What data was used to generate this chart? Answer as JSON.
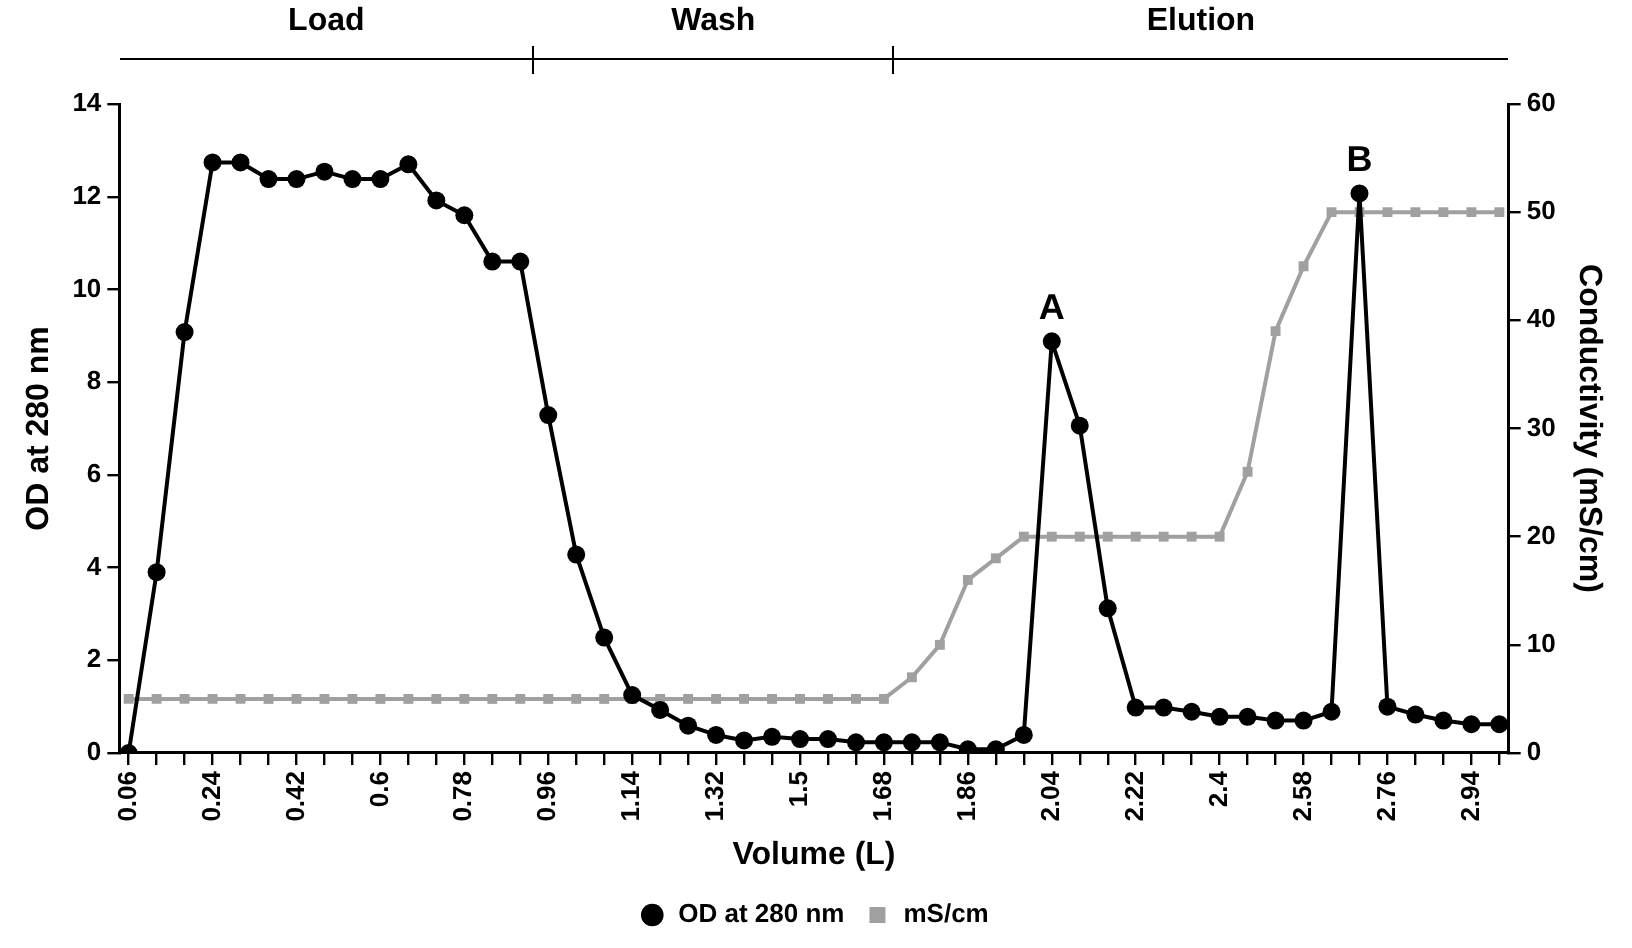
{
  "chart_data": {
    "type": "line",
    "xlabel": "Volume (L)",
    "ylabel": "OD at 280 nm",
    "y2label": "Conductivity (mS/cm)",
    "x": [
      0.06,
      0.12,
      0.18,
      0.24,
      0.3,
      0.36,
      0.42,
      0.48,
      0.54,
      0.6,
      0.66,
      0.72,
      0.78,
      0.84,
      0.9,
      0.96,
      1.02,
      1.08,
      1.14,
      1.2,
      1.26,
      1.32,
      1.38,
      1.44,
      1.5,
      1.56,
      1.62,
      1.68,
      1.74,
      1.8,
      1.86,
      1.92,
      1.98,
      2.04,
      2.1,
      2.16,
      2.22,
      2.28,
      2.34,
      2.4,
      2.46,
      2.52,
      2.58,
      2.64,
      2.7,
      2.76,
      2.82,
      2.88,
      2.94,
      3.0
    ],
    "series": [
      {
        "name": "OD at 280 nm",
        "color": "#000000",
        "marker": "circle",
        "values": [
          0,
          3.9,
          9.08,
          12.74,
          12.74,
          12.38,
          12.38,
          12.54,
          12.38,
          12.38,
          12.7,
          11.92,
          11.6,
          10.6,
          10.6,
          7.29,
          4.28,
          2.49,
          1.25,
          0.93,
          0.59,
          0.39,
          0.27,
          0.35,
          0.3,
          0.3,
          0.23,
          0.23,
          0.23,
          0.23,
          0.08,
          0.08,
          0.39,
          8.88,
          7.06,
          3.12,
          0.98,
          0.98,
          0.89,
          0.78,
          0.78,
          0.7,
          0.7,
          0.89,
          12.07,
          1,
          0.83,
          0.7,
          0.62,
          0.62
        ]
      },
      {
        "name": "mS/cm",
        "color": "#a0a0a0",
        "marker": "square",
        "axis": "y2",
        "values": [
          5,
          5,
          5,
          5,
          5,
          5,
          5,
          5,
          5,
          5,
          5,
          5,
          5,
          5,
          5,
          5,
          5,
          5,
          5,
          5,
          5,
          5,
          5,
          5,
          5,
          5,
          5,
          5,
          7,
          10,
          16,
          18,
          20,
          20,
          20,
          20,
          20,
          20,
          20,
          20,
          26,
          39,
          45,
          50,
          50,
          50,
          50,
          50,
          50,
          50
        ]
      }
    ],
    "xlim": [
      0.04,
      3.02
    ],
    "xticks": [
      0.06,
      {
        "value": 0.12,
        "label": null
      },
      {
        "value": 0.18,
        "label": null
      },
      0.24,
      {
        "value": 0.3,
        "label": null
      },
      {
        "value": 0.36,
        "label": null
      },
      0.42,
      {
        "value": 0.48,
        "label": null
      },
      {
        "value": 0.54,
        "label": null
      },
      0.6,
      {
        "value": 0.66,
        "label": null
      },
      {
        "value": 0.72,
        "label": null
      },
      0.78,
      {
        "value": 0.84,
        "label": null
      },
      {
        "value": 0.9,
        "label": null
      },
      0.96,
      {
        "value": 1.02,
        "label": null
      },
      {
        "value": 1.08,
        "label": null
      },
      1.14,
      {
        "value": 1.2,
        "label": null
      },
      {
        "value": 1.26,
        "label": null
      },
      1.32,
      {
        "value": 1.38,
        "label": null
      },
      {
        "value": 1.44,
        "label": null
      },
      1.5,
      {
        "value": 1.56,
        "label": null
      },
      {
        "value": 1.62,
        "label": null
      },
      1.68,
      {
        "value": 1.74,
        "label": null
      },
      {
        "value": 1.8,
        "label": null
      },
      1.86,
      {
        "value": 1.92,
        "label": null
      },
      {
        "value": 1.98,
        "label": null
      },
      2.04,
      {
        "value": 2.1,
        "label": null
      },
      {
        "value": 2.16,
        "label": null
      },
      2.22,
      {
        "value": 2.28,
        "label": null
      },
      {
        "value": 2.34,
        "label": null
      },
      2.4,
      {
        "value": 2.46,
        "label": null
      },
      {
        "value": 2.52,
        "label": null
      },
      2.58,
      {
        "value": 2.64,
        "label": null
      },
      {
        "value": 2.7,
        "label": null
      },
      2.76,
      {
        "value": 2.82,
        "label": null
      },
      {
        "value": 2.88,
        "label": null
      },
      2.94,
      {
        "value": 3.0,
        "label": null
      }
    ],
    "ylim": [
      0,
      14
    ],
    "yticks": [
      0,
      2,
      4,
      6,
      8,
      10,
      12,
      14
    ],
    "y2lim": [
      0,
      60
    ],
    "y2ticks": [
      0,
      10,
      20,
      30,
      40,
      50,
      60
    ],
    "annotations": [
      "Load",
      "Wash",
      "Elution",
      {
        "text": "A",
        "x": 2.04,
        "y": 8.88
      },
      {
        "text": "B",
        "x": 2.7,
        "y": 12.07
      }
    ],
    "legend": "bottom",
    "grid": false,
    "line_style": "solid"
  }
}
